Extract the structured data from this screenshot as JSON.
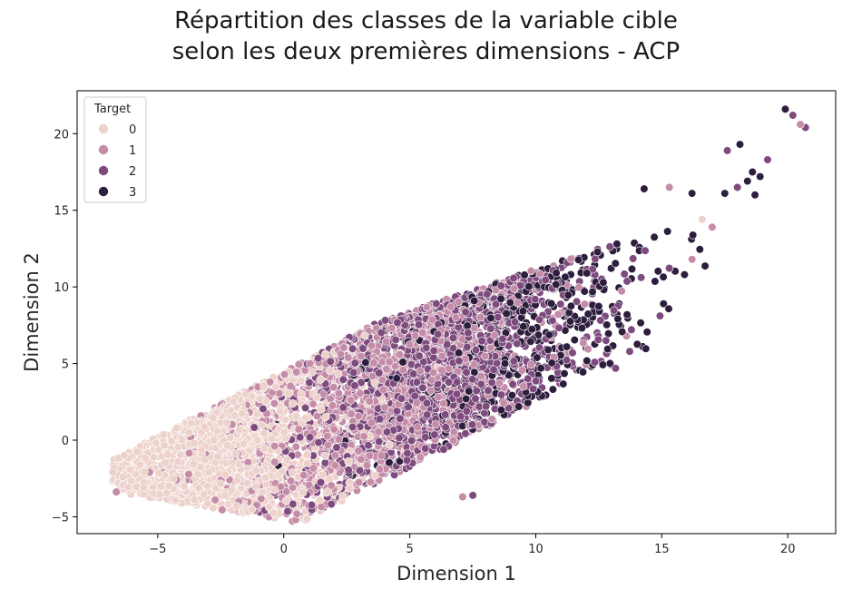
{
  "chart_data": {
    "type": "scatter",
    "title_line1": "Répartition des classes de la variable cible",
    "title_line2": "selon les deux premières dimensions - ACP",
    "xlabel": "Dimension 1",
    "ylabel": "Dimension 2",
    "xlim": [
      -8.2,
      21.9
    ],
    "ylim": [
      -6.1,
      22.8
    ],
    "xticks": [
      -5,
      0,
      5,
      10,
      15,
      20
    ],
    "yticks": [
      -5,
      0,
      5,
      10,
      15,
      20
    ],
    "grid": false,
    "legend": {
      "title": "Target",
      "position": "top-left",
      "entries": [
        "0",
        "1",
        "2",
        "3"
      ]
    },
    "series": [
      {
        "name": "0",
        "color": "#edd1cb",
        "count": 1400
      },
      {
        "name": "1",
        "color": "#c48ca7",
        "count": 1300
      },
      {
        "name": "2",
        "color": "#7d4b7d",
        "count": 1400
      },
      {
        "name": "3",
        "color": "#2d1e3e",
        "count": 500
      }
    ],
    "outliers": [
      {
        "x": 19.9,
        "y": 21.6,
        "series": "3"
      },
      {
        "x": 20.2,
        "y": 21.2,
        "series": "2"
      },
      {
        "x": 20.5,
        "y": 20.6,
        "series": "1"
      },
      {
        "x": 20.7,
        "y": 20.4,
        "series": "2"
      },
      {
        "x": 18.1,
        "y": 19.3,
        "series": "3"
      },
      {
        "x": 17.6,
        "y": 18.9,
        "series": "2"
      },
      {
        "x": 19.2,
        "y": 18.3,
        "series": "2"
      },
      {
        "x": 18.6,
        "y": 17.5,
        "series": "3"
      },
      {
        "x": 18.9,
        "y": 17.2,
        "series": "3"
      },
      {
        "x": 18.0,
        "y": 16.5,
        "series": "2"
      },
      {
        "x": 18.4,
        "y": 16.9,
        "series": "3"
      },
      {
        "x": 18.7,
        "y": 16.0,
        "series": "3"
      },
      {
        "x": 16.6,
        "y": 14.4,
        "series": "0"
      },
      {
        "x": 17.0,
        "y": 13.9,
        "series": "1"
      },
      {
        "x": 17.5,
        "y": 16.1,
        "series": "3"
      },
      {
        "x": 15.3,
        "y": 16.5,
        "series": "1"
      },
      {
        "x": 14.3,
        "y": 16.4,
        "series": "3"
      },
      {
        "x": 16.2,
        "y": 16.1,
        "series": "3"
      },
      {
        "x": 16.2,
        "y": 11.8,
        "series": "1"
      },
      {
        "x": 15.9,
        "y": 10.8,
        "series": "3"
      },
      {
        "x": 13.6,
        "y": 6.8,
        "series": "1"
      },
      {
        "x": 7.5,
        "y": -3.6,
        "series": "2"
      },
      {
        "x": 7.1,
        "y": -3.7,
        "series": "1"
      }
    ]
  }
}
